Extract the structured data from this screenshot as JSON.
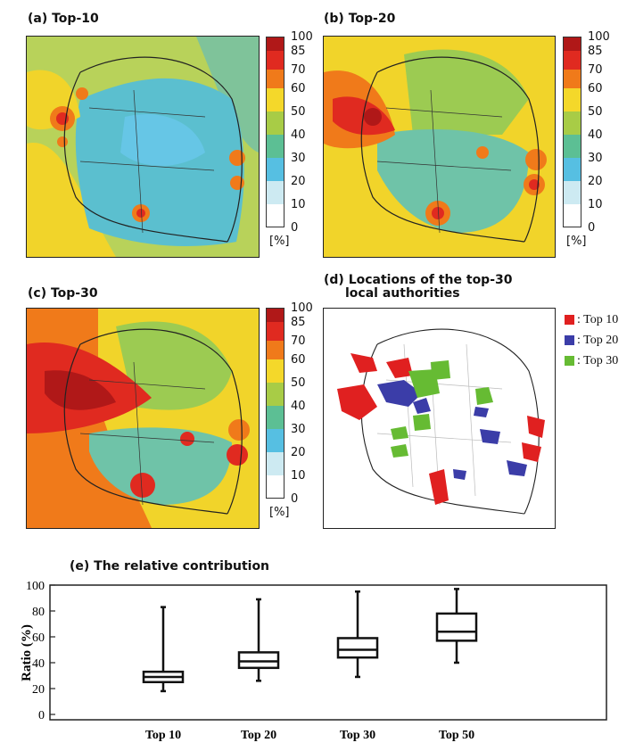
{
  "panels": {
    "a": {
      "title": "(a) Top-10"
    },
    "b": {
      "title": "(b) Top-20"
    },
    "c": {
      "title": "(c) Top-30"
    },
    "d": {
      "title_line1": "(d) Locations of the top-30",
      "title_line2": "local authorities"
    },
    "e": {
      "title": "(e) The relative contribution"
    }
  },
  "colorbar": {
    "unit": "[%]",
    "levels": [
      "100",
      "85",
      "70",
      "60",
      "50",
      "40",
      "30",
      "20",
      "10",
      "0"
    ],
    "colors": [
      "#b01818",
      "#e02a20",
      "#f07a1a",
      "#f4d82a",
      "#a8cc46",
      "#5cbf94",
      "#56bfe2",
      "#cdeaf2",
      "#ffffff"
    ]
  },
  "legend_d": [
    {
      "label": ": Top 10",
      "color": "#e02020"
    },
    {
      "label": ": Top 20",
      "color": "#3b3da8"
    },
    {
      "label": ": Top 30",
      "color": "#66bb33"
    }
  ],
  "chart_data": {
    "type": "box",
    "title": "(e) The relative contribution",
    "ylabel": "Ratio (%)",
    "ylim": [
      0,
      100
    ],
    "yticks": [
      "0",
      "20",
      "40",
      "60",
      "80",
      "100"
    ],
    "categories": [
      "Top 10",
      "Top 20",
      "Top 30",
      "Top 50"
    ],
    "boxes": [
      {
        "min": 18,
        "q1": 25,
        "median": 29,
        "q3": 33,
        "max": 83
      },
      {
        "min": 26,
        "q1": 36,
        "median": 41,
        "q3": 48,
        "max": 89
      },
      {
        "min": 29,
        "q1": 44,
        "median": 50,
        "q3": 59,
        "max": 95
      },
      {
        "min": 40,
        "q1": 57,
        "median": 64,
        "q3": 78,
        "max": 97
      }
    ]
  }
}
